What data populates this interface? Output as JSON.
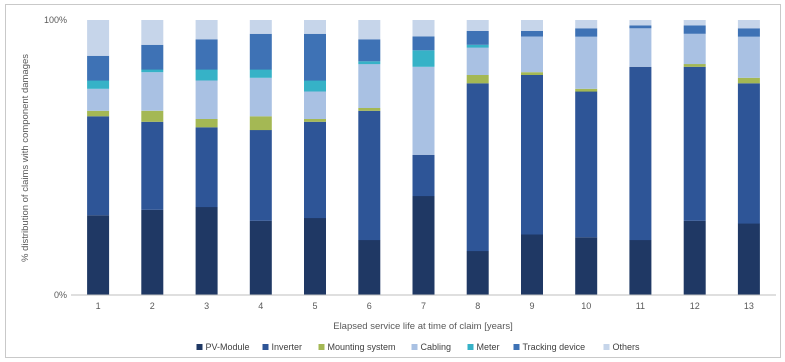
{
  "chart_data": {
    "type": "bar",
    "stacked": true,
    "normalized": true,
    "xlabel": "Elapsed service life at time of claim [years]",
    "ylabel": "% distribution of claims with component damages",
    "y_ticks": [
      "0%",
      "100%"
    ],
    "ylim": [
      0,
      100
    ],
    "categories": [
      "1",
      "2",
      "3",
      "4",
      "5",
      "6",
      "7",
      "8",
      "9",
      "10",
      "11",
      "12",
      "13"
    ],
    "legend_position": "bottom",
    "grid": false,
    "series": [
      {
        "name": "PV-Module",
        "color": "#1f3864",
        "values": [
          29,
          31,
          32,
          27,
          28,
          20,
          36,
          16,
          22,
          21,
          20,
          27,
          26
        ]
      },
      {
        "name": "Inverter",
        "color": "#2e5597",
        "values": [
          36,
          32,
          29,
          33,
          35,
          47,
          15,
          61,
          58,
          53,
          63,
          56,
          51
        ]
      },
      {
        "name": "Mounting system",
        "color": "#a4b854",
        "values": [
          2,
          4,
          3,
          5,
          1,
          1,
          0,
          3,
          1,
          1,
          0,
          1,
          2
        ]
      },
      {
        "name": "Cabling",
        "color": "#a9c1e3",
        "values": [
          8,
          14,
          14,
          14,
          10,
          16,
          32,
          10,
          13,
          19,
          14,
          11,
          15
        ]
      },
      {
        "name": "Meter",
        "color": "#36b2c7",
        "values": [
          3,
          1,
          4,
          3,
          4,
          1,
          6,
          1,
          0,
          0,
          0,
          0,
          0
        ]
      },
      {
        "name": "Tracking device",
        "color": "#3e72b5",
        "values": [
          9,
          9,
          11,
          13,
          17,
          8,
          5,
          5,
          2,
          3,
          1,
          3,
          3
        ]
      },
      {
        "name": "Others",
        "color": "#c6d5ea",
        "values": [
          13,
          9,
          7,
          5,
          5,
          7,
          6,
          4,
          4,
          3,
          2,
          2,
          3
        ]
      }
    ]
  }
}
